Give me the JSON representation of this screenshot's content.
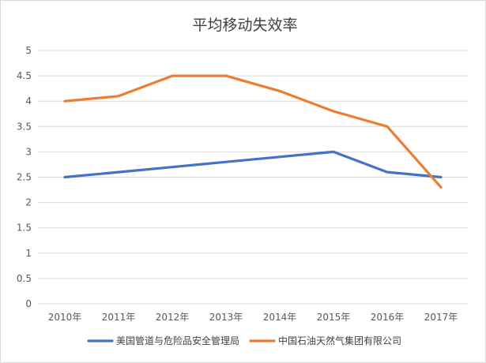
{
  "chart_data": {
    "type": "line",
    "title": "平均移动失效率",
    "xlabel": "",
    "ylabel": "",
    "categories": [
      "2010年",
      "2011年",
      "2012年",
      "2013年",
      "2014年",
      "2015年",
      "2016年",
      "2017年"
    ],
    "ylim": [
      0,
      5
    ],
    "yticks": [
      "0",
      "0.5",
      "1",
      "1.5",
      "2",
      "2.5",
      "3",
      "3.5",
      "4",
      "4.5",
      "5"
    ],
    "grid": true,
    "legend_position": "bottom",
    "series": [
      {
        "name": "美国管道与危险品安全管理局",
        "color": "#4472c4",
        "values": [
          2.5,
          2.6,
          2.7,
          2.8,
          2.9,
          3.0,
          2.6,
          2.5
        ]
      },
      {
        "name": "中国石油天然气集团有限公司",
        "color": "#ed7d31",
        "values": [
          4.0,
          4.1,
          4.5,
          4.5,
          4.2,
          3.8,
          3.5,
          2.3
        ]
      }
    ]
  }
}
